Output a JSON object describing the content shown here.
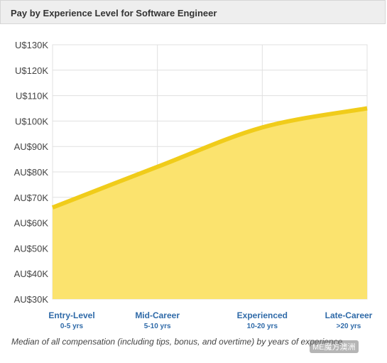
{
  "header": {
    "title": "Pay by Experience Level for Software Engineer"
  },
  "caption": "Median of all compensation (including tips, bonus, and overtime) by years of experience.",
  "watermark": "ME魔方澳洲",
  "colors": {
    "fill": "#fbe36e",
    "line": "#f0cc1a",
    "grid": "#e0e0e0",
    "label": "#2f6aa8"
  },
  "chart_data": {
    "type": "area",
    "title": "Pay by Experience Level for Software Engineer",
    "categories": [
      "Entry-Level",
      "Mid-Career",
      "Experienced",
      "Late-Career"
    ],
    "category_subtitles": [
      "0-5 yrs",
      "5-10 yrs",
      "10-20 yrs",
      ">20 yrs"
    ],
    "values": [
      66000,
      82000,
      97500,
      105000
    ],
    "ylim": [
      30000,
      130000
    ],
    "yticks": [
      130000,
      120000,
      110000,
      100000,
      90000,
      80000,
      70000,
      60000,
      50000,
      40000,
      30000
    ],
    "ytick_labels": [
      "U$130K",
      "U$120K",
      "U$110K",
      "U$100K",
      "AU$90K",
      "AU$80K",
      "AU$70K",
      "AU$60K",
      "AU$50K",
      "AU$40K",
      "AU$30K"
    ],
    "grid": true,
    "xlabel": "",
    "ylabel": ""
  }
}
